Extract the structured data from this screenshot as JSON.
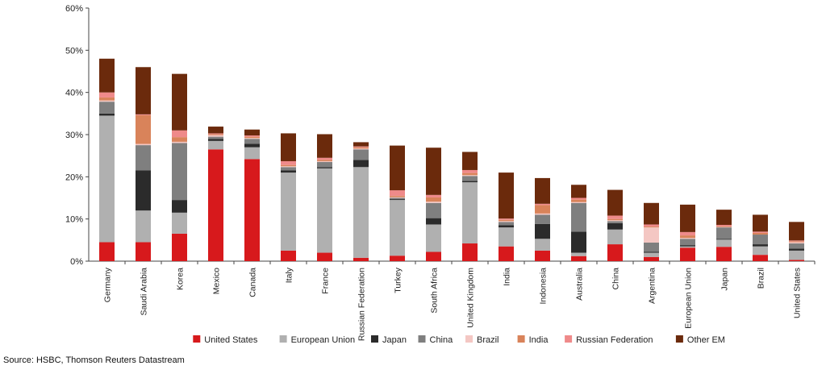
{
  "chart_data": {
    "type": "bar",
    "stacked": true,
    "categories": [
      "Germany",
      "Saudi Arabia",
      "Korea",
      "Mexico",
      "Canada",
      "Italy",
      "France",
      "Russian Federation",
      "Turkey",
      "South Africa",
      "United Kingdom",
      "India",
      "Indonesia",
      "Australia",
      "China",
      "Argentina",
      "European Union",
      "Japan",
      "Brazil",
      "United States"
    ],
    "series": [
      {
        "name": "United States",
        "color": "#d7191c",
        "values": [
          4.5,
          4.5,
          6.5,
          26.5,
          24.2,
          2.5,
          2.0,
          0.8,
          1.3,
          2.2,
          4.2,
          3.5,
          2.5,
          1.2,
          4.0,
          1.0,
          3.2,
          3.4,
          1.5,
          0.3
        ]
      },
      {
        "name": "European Union",
        "color": "#b0b0b0",
        "values": [
          30.0,
          7.5,
          5.0,
          2.0,
          2.8,
          18.5,
          20.0,
          21.5,
          13.2,
          6.5,
          14.5,
          4.5,
          2.8,
          0.8,
          3.5,
          1.0,
          0.3,
          1.7,
          2.0,
          2.2
        ]
      },
      {
        "name": "Japan",
        "color": "#2b2b2b",
        "values": [
          0.5,
          9.5,
          3.0,
          0.5,
          0.8,
          0.5,
          0.3,
          1.7,
          0.2,
          1.5,
          0.3,
          0.5,
          3.5,
          5.0,
          1.5,
          0.2,
          0.3,
          0.2,
          0.5,
          0.5
        ]
      },
      {
        "name": "China",
        "color": "#7f7f7f",
        "values": [
          2.8,
          6.0,
          13.5,
          0.5,
          1.2,
          0.8,
          1.2,
          2.5,
          0.3,
          3.6,
          1.2,
          0.8,
          2.2,
          6.8,
          0.5,
          2.2,
          1.5,
          2.7,
          2.3,
          1.2
        ]
      },
      {
        "name": "Brazil",
        "color": "#f4c7c3",
        "values": [
          0.3,
          0.3,
          0.3,
          0.4,
          0.2,
          0.2,
          0.2,
          0.2,
          0.2,
          0.3,
          0.2,
          0.2,
          0.3,
          0.2,
          0.2,
          3.6,
          0.2,
          0.1,
          0.0,
          0.3
        ]
      },
      {
        "name": "India",
        "color": "#d9835a",
        "values": [
          0.7,
          6.8,
          1.1,
          0.2,
          0.3,
          0.3,
          0.3,
          0.3,
          0.3,
          1.0,
          0.5,
          0.3,
          2.0,
          0.6,
          0.3,
          0.2,
          0.6,
          0.2,
          0.4,
          0.2
        ]
      },
      {
        "name": "Russian Federation",
        "color": "#ef8a8a",
        "values": [
          1.2,
          0.2,
          1.6,
          0.2,
          0.3,
          0.9,
          0.5,
          0.2,
          1.3,
          0.6,
          0.7,
          0.3,
          0.3,
          0.4,
          0.8,
          0.5,
          0.8,
          0.3,
          0.3,
          0.2
        ]
      },
      {
        "name": "Other EM",
        "color": "#6b2a0c",
        "values": [
          8.0,
          11.2,
          13.4,
          1.6,
          1.4,
          6.6,
          5.6,
          1.0,
          10.6,
          11.2,
          4.3,
          10.9,
          6.1,
          3.1,
          6.1,
          5.1,
          6.5,
          3.6,
          4.0,
          4.4
        ]
      }
    ],
    "ylim": [
      0,
      60
    ],
    "yticks": [
      "0%",
      "10%",
      "20%",
      "30%",
      "40%",
      "50%",
      "60%"
    ],
    "ytick_values": [
      0,
      10,
      20,
      30,
      40,
      50,
      60
    ],
    "grid": false,
    "legend_position": "bottom"
  },
  "source": "Source: HSBC, Thomson Reuters Datastream"
}
